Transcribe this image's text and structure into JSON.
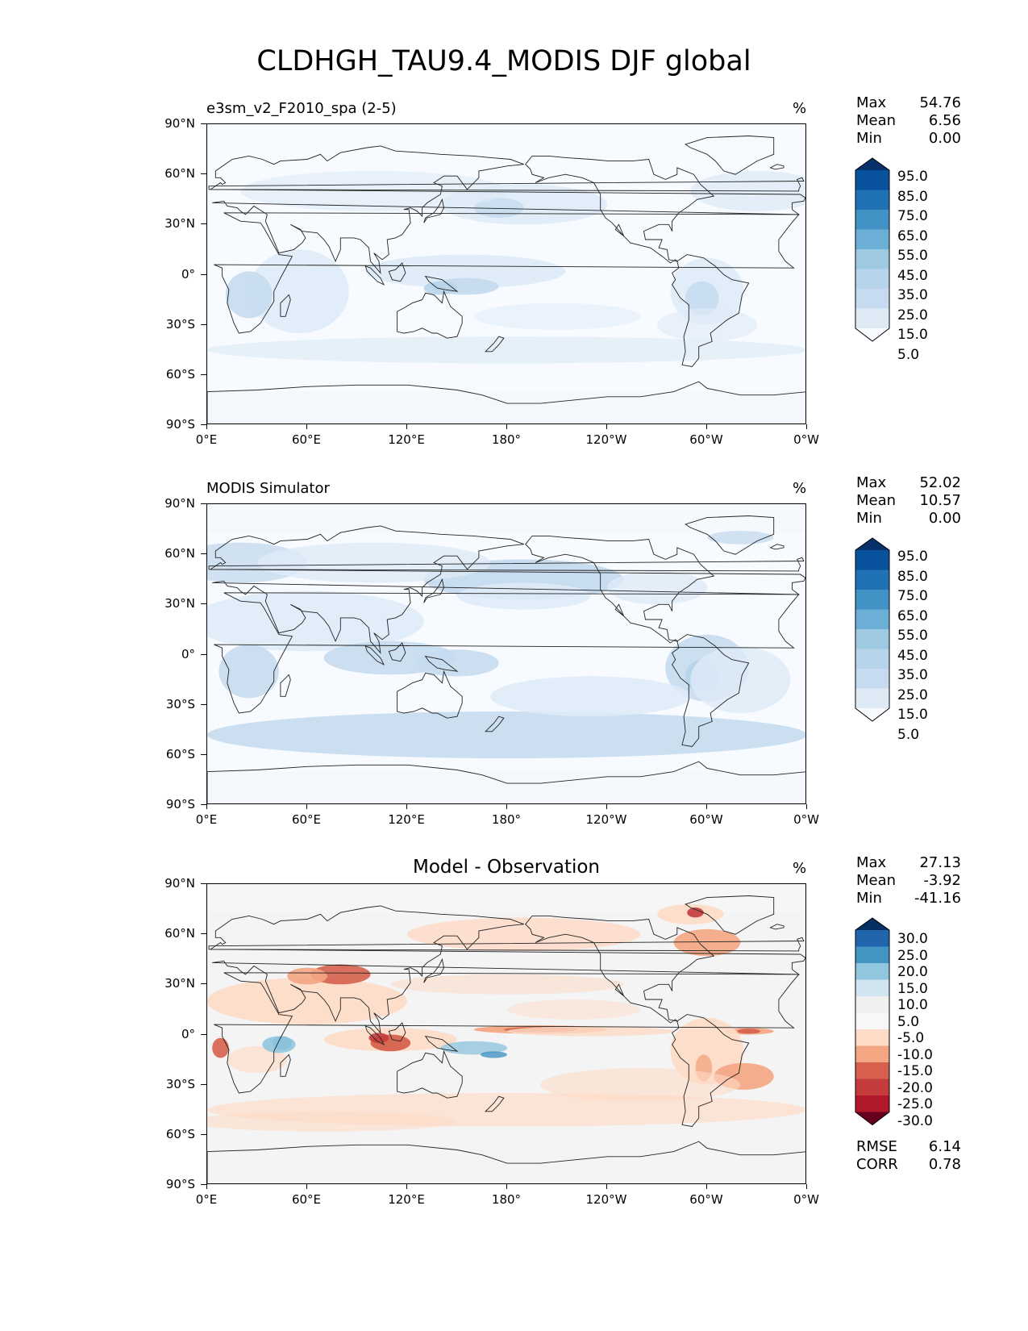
{
  "figure": {
    "title": "CLDHGH_TAU9.4_MODIS DJF global"
  },
  "axes": {
    "lat_ticks": [
      "90°N",
      "60°N",
      "30°N",
      "0°",
      "30°S",
      "60°S",
      "90°S"
    ],
    "lon_ticks": [
      "0°E",
      "60°E",
      "120°E",
      "180°",
      "120°W",
      "60°W",
      "0°W"
    ]
  },
  "panels": [
    {
      "title": "e3sm_v2_F2010_spa (2-5)",
      "title_style": "left",
      "units": "%",
      "stats": [
        {
          "label": "Max",
          "value": "54.76"
        },
        {
          "label": "Mean",
          "value": "6.56"
        },
        {
          "label": "Min",
          "value": "0.00"
        }
      ],
      "colorbar": {
        "ticks": [
          "95.0",
          "85.0",
          "75.0",
          "65.0",
          "55.0",
          "45.0",
          "35.0",
          "25.0",
          "15.0",
          "5.0"
        ],
        "colors_top_to_bottom": [
          "#08306b",
          "#08519c",
          "#2171b5",
          "#4292c6",
          "#6baed6",
          "#9ecae1",
          "#b7d4ea",
          "#c6dbef",
          "#deebf7",
          "#f7fbff"
        ]
      }
    },
    {
      "title": "MODIS Simulator",
      "title_style": "left",
      "units": "%",
      "stats": [
        {
          "label": "Max",
          "value": "52.02"
        },
        {
          "label": "Mean",
          "value": "10.57"
        },
        {
          "label": "Min",
          "value": "0.00"
        }
      ],
      "colorbar": {
        "ticks": [
          "95.0",
          "85.0",
          "75.0",
          "65.0",
          "55.0",
          "45.0",
          "35.0",
          "25.0",
          "15.0",
          "5.0"
        ],
        "colors_top_to_bottom": [
          "#08306b",
          "#08519c",
          "#2171b5",
          "#4292c6",
          "#6baed6",
          "#9ecae1",
          "#b7d4ea",
          "#c6dbef",
          "#deebf7",
          "#f7fbff"
        ]
      }
    },
    {
      "title": "Model - Observation",
      "title_style": "center",
      "units": "%",
      "stats": [
        {
          "label": "Max",
          "value": "27.13"
        },
        {
          "label": "Mean",
          "value": "-3.92"
        },
        {
          "label": "Min",
          "value": "-41.16"
        }
      ],
      "extra_stats": [
        {
          "label": "RMSE",
          "value": "6.14"
        },
        {
          "label": "CORR",
          "value": "0.78"
        }
      ],
      "colorbar": {
        "ticks": [
          "30.0",
          "25.0",
          "20.0",
          "15.0",
          "10.0",
          "5.0",
          "-5.0",
          "-10.0",
          "-15.0",
          "-20.0",
          "-25.0",
          "-30.0"
        ],
        "colors_top_to_bottom": [
          "#053061",
          "#2166ac",
          "#4393c3",
          "#92c5de",
          "#d1e5f0",
          "#f0f0f0",
          "#f7f7f7",
          "#fddbc7",
          "#f4a582",
          "#d6604d",
          "#c43c3c",
          "#b2182b",
          "#67001f"
        ]
      }
    }
  ]
}
